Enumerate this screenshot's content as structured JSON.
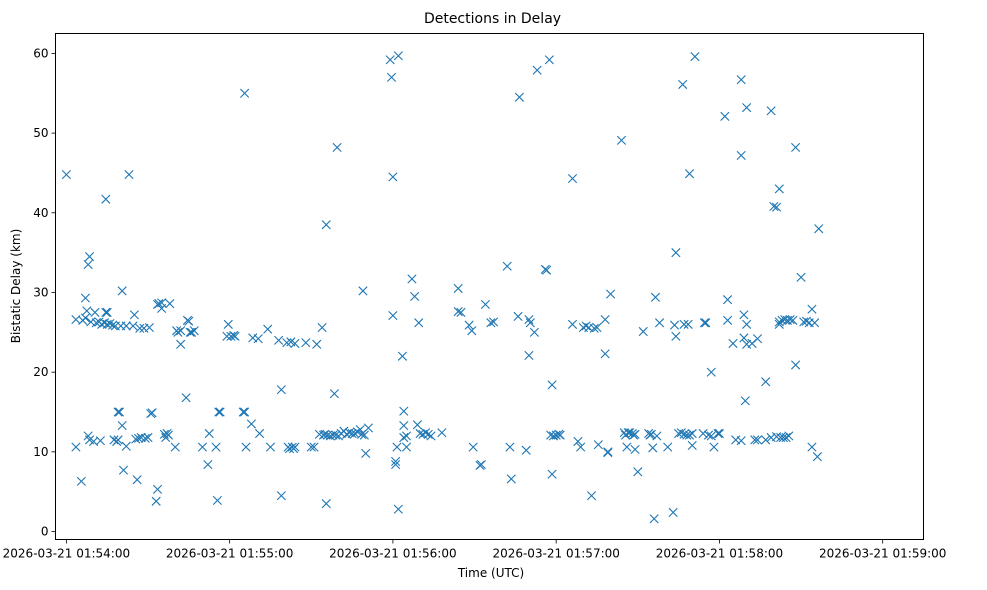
{
  "chart_data": {
    "type": "scatter",
    "title": "Detections in Delay",
    "xlabel": "Time (UTC)",
    "ylabel": "Bistatic Delay (km)",
    "marker": "x",
    "marker_color": "#1f77b4",
    "x_unit": "seconds after 2026-03-21 01:54:00",
    "xlim": [
      -4,
      315
    ],
    "ylim": [
      -1,
      62.5
    ],
    "x_ticks": [
      {
        "value": 0,
        "label": "2026-03-21 01:54:00"
      },
      {
        "value": 60,
        "label": "2026-03-21 01:55:00"
      },
      {
        "value": 120,
        "label": "2026-03-21 01:56:00"
      },
      {
        "value": 180,
        "label": "2026-03-21 01:57:00"
      },
      {
        "value": 240,
        "label": "2026-03-21 01:58:00"
      },
      {
        "value": 300,
        "label": "2026-03-21 01:59:00"
      }
    ],
    "y_ticks": [
      {
        "value": 0,
        "label": "0"
      },
      {
        "value": 10,
        "label": "10"
      },
      {
        "value": 20,
        "label": "20"
      },
      {
        "value": 30,
        "label": "30"
      },
      {
        "value": 40,
        "label": "40"
      },
      {
        "value": 50,
        "label": "50"
      },
      {
        "value": 60,
        "label": "60"
      }
    ],
    "points": [
      [
        0,
        44.8
      ],
      [
        3.5,
        26.6
      ],
      [
        3.5,
        10.6
      ],
      [
        5.5,
        6.3
      ],
      [
        6,
        26.5
      ],
      [
        7,
        26.8
      ],
      [
        7,
        29.3
      ],
      [
        7.5,
        27.7
      ],
      [
        8,
        12
      ],
      [
        8,
        33.5
      ],
      [
        8.5,
        34.5
      ],
      [
        8.5,
        11.5
      ],
      [
        9,
        26.3
      ],
      [
        10,
        11.3
      ],
      [
        10.5,
        27.5
      ],
      [
        11,
        26.2
      ],
      [
        12,
        26.3
      ],
      [
        12.5,
        11.4
      ],
      [
        13,
        26
      ],
      [
        14,
        26.2
      ],
      [
        14.5,
        27.5
      ],
      [
        14.5,
        41.7
      ],
      [
        15,
        27.5
      ],
      [
        15,
        26
      ],
      [
        16,
        26.1
      ],
      [
        17,
        25.9
      ],
      [
        17.5,
        11.5
      ],
      [
        18,
        25.8
      ],
      [
        18.5,
        11.3
      ],
      [
        19,
        15
      ],
      [
        19,
        11.5
      ],
      [
        19.5,
        15
      ],
      [
        20,
        25.8
      ],
      [
        20.5,
        30.2
      ],
      [
        20.5,
        13.3
      ],
      [
        21,
        7.7
      ],
      [
        22,
        10.7
      ],
      [
        22,
        25.8
      ],
      [
        23,
        44.8
      ],
      [
        24.5,
        25.8
      ],
      [
        25,
        27.2
      ],
      [
        25.5,
        11.6
      ],
      [
        26,
        6.5
      ],
      [
        26.5,
        11.7
      ],
      [
        27,
        25.5
      ],
      [
        27.5,
        11.8
      ],
      [
        28.5,
        25.5
      ],
      [
        29,
        11.7
      ],
      [
        30,
        11.8
      ],
      [
        30.5,
        25.6
      ],
      [
        31,
        14.8
      ],
      [
        31.5,
        14.9
      ],
      [
        33,
        3.8
      ],
      [
        33.5,
        5.3
      ],
      [
        33.5,
        28.5
      ],
      [
        34,
        28.6
      ],
      [
        35,
        28
      ],
      [
        35,
        28.7
      ],
      [
        36,
        12.2
      ],
      [
        36.5,
        11.8
      ],
      [
        37,
        12.3
      ],
      [
        37.5,
        12.1
      ],
      [
        38,
        28.6
      ],
      [
        40,
        10.6
      ],
      [
        40.5,
        25.2
      ],
      [
        41,
        25
      ],
      [
        42,
        23.5
      ],
      [
        42,
        25.2
      ],
      [
        44,
        16.8
      ],
      [
        44.5,
        26.5
      ],
      [
        45,
        26.4
      ],
      [
        45.5,
        25
      ],
      [
        46,
        25
      ],
      [
        47,
        25.2
      ],
      [
        50,
        10.6
      ],
      [
        52,
        8.4
      ],
      [
        52.5,
        12.3
      ],
      [
        55,
        10.6
      ],
      [
        55.5,
        3.9
      ],
      [
        56,
        15
      ],
      [
        56.5,
        15
      ],
      [
        59,
        24.5
      ],
      [
        59.5,
        26
      ],
      [
        60.5,
        24.5
      ],
      [
        61.5,
        24.6
      ],
      [
        62,
        24.5
      ],
      [
        65,
        15
      ],
      [
        65.5,
        15
      ],
      [
        65.5,
        55
      ],
      [
        66,
        10.6
      ],
      [
        68,
        13.5
      ],
      [
        68.5,
        24.3
      ],
      [
        70.5,
        24.2
      ],
      [
        71,
        12.3
      ],
      [
        74,
        25.4
      ],
      [
        75,
        10.6
      ],
      [
        78,
        24
      ],
      [
        79,
        4.5
      ],
      [
        79,
        17.8
      ],
      [
        81,
        23.7
      ],
      [
        81.5,
        10.6
      ],
      [
        82,
        10.4
      ],
      [
        82.5,
        23.8
      ],
      [
        83,
        10.6
      ],
      [
        83.5,
        10.4
      ],
      [
        84,
        10.6
      ],
      [
        84,
        23.6
      ],
      [
        88,
        23.7
      ],
      [
        90,
        10.6
      ],
      [
        91,
        10.6
      ],
      [
        92,
        23.5
      ],
      [
        93,
        12.2
      ],
      [
        94,
        25.6
      ],
      [
        94.5,
        12.1
      ],
      [
        95,
        12.2
      ],
      [
        95.5,
        38.5
      ],
      [
        95.5,
        3.5
      ],
      [
        96,
        12.1
      ],
      [
        97,
        12
      ],
      [
        98,
        12.1
      ],
      [
        98.5,
        17.3
      ],
      [
        99,
        12.1
      ],
      [
        99.5,
        48.2
      ],
      [
        100,
        12
      ],
      [
        101,
        12.3
      ],
      [
        102,
        12.6
      ],
      [
        103,
        12.2
      ],
      [
        104,
        12.4
      ],
      [
        105,
        12.3
      ],
      [
        106,
        12.3
      ],
      [
        107,
        12.5
      ],
      [
        108,
        12.8
      ],
      [
        108.5,
        12.2
      ],
      [
        109,
        30.2
      ],
      [
        109.5,
        12.1
      ],
      [
        110,
        9.8
      ],
      [
        111,
        13
      ],
      [
        119,
        59.2
      ],
      [
        119.5,
        57
      ],
      [
        120,
        44.5
      ],
      [
        120,
        27.1
      ],
      [
        121,
        8.4
      ],
      [
        121,
        8.8
      ],
      [
        121.5,
        10.6
      ],
      [
        122,
        2.8
      ],
      [
        122,
        59.7
      ],
      [
        123.5,
        22
      ],
      [
        124,
        11.8
      ],
      [
        124,
        15.1
      ],
      [
        124,
        13.3
      ],
      [
        125,
        12
      ],
      [
        125,
        10.6
      ],
      [
        127,
        31.7
      ],
      [
        128,
        29.5
      ],
      [
        129,
        13.4
      ],
      [
        129.5,
        26.2
      ],
      [
        130,
        12.3
      ],
      [
        131,
        12.2
      ],
      [
        132,
        12.4
      ],
      [
        133,
        12.2
      ],
      [
        134,
        12
      ],
      [
        138,
        12.4
      ],
      [
        144,
        30.5
      ],
      [
        144,
        27.6
      ],
      [
        145,
        27.5
      ],
      [
        148,
        25.9
      ],
      [
        149,
        25.2
      ],
      [
        149.5,
        10.6
      ],
      [
        152,
        8.3
      ],
      [
        152.5,
        8.4
      ],
      [
        154,
        28.5
      ],
      [
        156,
        26.2
      ],
      [
        157,
        26.3
      ],
      [
        162,
        33.3
      ],
      [
        163,
        10.6
      ],
      [
        163.5,
        6.6
      ],
      [
        166,
        27
      ],
      [
        166.5,
        54.5
      ],
      [
        169,
        10.2
      ],
      [
        170,
        22.1
      ],
      [
        170,
        26.6
      ],
      [
        170.5,
        26.2
      ],
      [
        172,
        25
      ],
      [
        173,
        57.9
      ],
      [
        176,
        32.9
      ],
      [
        176.5,
        32.8
      ],
      [
        177.5,
        59.2
      ],
      [
        178,
        12.1
      ],
      [
        178.5,
        18.4
      ],
      [
        178.5,
        7.2
      ],
      [
        179,
        12
      ],
      [
        180,
        12.1
      ],
      [
        181,
        12.2
      ],
      [
        181.5,
        12.1
      ],
      [
        186,
        44.3
      ],
      [
        186,
        26
      ],
      [
        188,
        11.3
      ],
      [
        189,
        10.6
      ],
      [
        190,
        25.6
      ],
      [
        191,
        25.8
      ],
      [
        192,
        25.6
      ],
      [
        193,
        4.5
      ],
      [
        194,
        25.5
      ],
      [
        195,
        25.6
      ],
      [
        195.5,
        10.9
      ],
      [
        198,
        26.6
      ],
      [
        198,
        22.3
      ],
      [
        199,
        9.9
      ],
      [
        199,
        10
      ],
      [
        200,
        29.8
      ],
      [
        204,
        49.1
      ],
      [
        205,
        12.4
      ],
      [
        205.5,
        12.1
      ],
      [
        206,
        10.6
      ],
      [
        206.5,
        12.4
      ],
      [
        207,
        12.4
      ],
      [
        208,
        12.3
      ],
      [
        208.5,
        12.1
      ],
      [
        209,
        12.2
      ],
      [
        209,
        10.3
      ],
      [
        210,
        7.5
      ],
      [
        212,
        25.1
      ],
      [
        214,
        12.3
      ],
      [
        214.5,
        12.1
      ],
      [
        215,
        12.2
      ],
      [
        215.5,
        10.5
      ],
      [
        216,
        1.6
      ],
      [
        216.5,
        29.4
      ],
      [
        217,
        12
      ],
      [
        218,
        26.2
      ],
      [
        221,
        10.6
      ],
      [
        223,
        2.4
      ],
      [
        223.5,
        25.9
      ],
      [
        224,
        35
      ],
      [
        224,
        24.5
      ],
      [
        225,
        12.3
      ],
      [
        226,
        12.4
      ],
      [
        226.5,
        56.1
      ],
      [
        227,
        26
      ],
      [
        227,
        12.2
      ],
      [
        228,
        12.1
      ],
      [
        228.5,
        26
      ],
      [
        229,
        12.1
      ],
      [
        229,
        44.9
      ],
      [
        230,
        12.3
      ],
      [
        230,
        10.8
      ],
      [
        231,
        59.6
      ],
      [
        234,
        12.3
      ],
      [
        234.5,
        26.2
      ],
      [
        235,
        26.2
      ],
      [
        236,
        12.1
      ],
      [
        237,
        20
      ],
      [
        237,
        12
      ],
      [
        238,
        10.6
      ],
      [
        239.5,
        12.3
      ],
      [
        240,
        12.3
      ],
      [
        242,
        52.1
      ],
      [
        243,
        29.1
      ],
      [
        243,
        26.5
      ],
      [
        245,
        23.6
      ],
      [
        246,
        11.5
      ],
      [
        248,
        47.2
      ],
      [
        248,
        56.7
      ],
      [
        248,
        11.4
      ],
      [
        249,
        27.2
      ],
      [
        249,
        24.3
      ],
      [
        249.5,
        16.4
      ],
      [
        250,
        53.2
      ],
      [
        250,
        26
      ],
      [
        250,
        23.5
      ],
      [
        252,
        23.6
      ],
      [
        253,
        11.5
      ],
      [
        254,
        24.2
      ],
      [
        254,
        11.5
      ],
      [
        257,
        18.8
      ],
      [
        257,
        11.5
      ],
      [
        259,
        52.8
      ],
      [
        259,
        11.8
      ],
      [
        260,
        40.8
      ],
      [
        261,
        40.7
      ],
      [
        261,
        11.9
      ],
      [
        262,
        26.3
      ],
      [
        262,
        26
      ],
      [
        262,
        43
      ],
      [
        262.5,
        11.8
      ],
      [
        263,
        26.5
      ],
      [
        263.5,
        11.8
      ],
      [
        264,
        26.6
      ],
      [
        264.5,
        11.8
      ],
      [
        265,
        26.5
      ],
      [
        265.5,
        12
      ],
      [
        266,
        26.6
      ],
      [
        267,
        26.5
      ],
      [
        268,
        20.9
      ],
      [
        268,
        48.2
      ],
      [
        270,
        31.9
      ],
      [
        271,
        26.3
      ],
      [
        272,
        26.4
      ],
      [
        273,
        26.2
      ],
      [
        274,
        27.9
      ],
      [
        274,
        10.6
      ],
      [
        275,
        26.2
      ],
      [
        276,
        9.4
      ],
      [
        276.5,
        38
      ]
    ]
  }
}
